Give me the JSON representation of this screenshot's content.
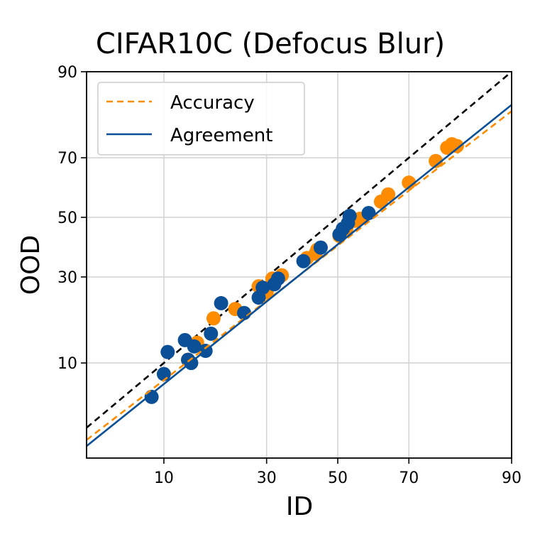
{
  "chart_data": {
    "type": "scatter",
    "title": "CIFAR10C (Defocus Blur)",
    "xlabel": "ID",
    "ylabel": "OOD",
    "xlim": [
      3.2,
      90
    ],
    "ylim": [
      1.7,
      90
    ],
    "x_ticks": [
      10,
      30,
      50,
      70,
      90
    ],
    "y_ticks": [
      10,
      30,
      50,
      70,
      90
    ],
    "x_tick_labels": [
      "10",
      "30",
      "50",
      "70",
      "90"
    ],
    "y_tick_labels": [
      "10",
      "30",
      "50",
      "70",
      "90"
    ],
    "scale": "probit",
    "grid": true,
    "legend_position": "top-left",
    "legend": [
      "Accuracy",
      "Agreement"
    ],
    "reference_line": "y = x",
    "series": [
      {
        "name": "Accuracy",
        "color": "#ff8c00",
        "fit_style": "dashed",
        "fit_line": [
          [
            3.2,
            2.5
          ],
          [
            90,
            82.5
          ]
        ],
        "points": [
          [
            13.5,
            10.5
          ],
          [
            15.0,
            13.5
          ],
          [
            18.0,
            18.7
          ],
          [
            22.5,
            21.0
          ],
          [
            28.0,
            27.2
          ],
          [
            29.0,
            26.2
          ],
          [
            30.0,
            25.5
          ],
          [
            31.5,
            29.5
          ],
          [
            34.0,
            30.5
          ],
          [
            41.0,
            36.0
          ],
          [
            43.5,
            37.5
          ],
          [
            44.0,
            38.8
          ],
          [
            50.5,
            43.5
          ],
          [
            52.5,
            46.0
          ],
          [
            55.0,
            48.8
          ],
          [
            56.5,
            49.5
          ],
          [
            62.5,
            55.5
          ],
          [
            64.5,
            58.0
          ],
          [
            70.0,
            62.0
          ],
          [
            76.5,
            69.0
          ],
          [
            79.0,
            73.0
          ],
          [
            80.0,
            74.0
          ],
          [
            81.0,
            73.5
          ]
        ],
        "marker": "circle"
      },
      {
        "name": "Agreement",
        "color": "#0b4f96",
        "fit_style": "solid",
        "fit_line": [
          [
            3.2,
            2.2
          ],
          [
            90,
            83.9
          ]
        ],
        "points": [
          [
            8.5,
            5.7
          ],
          [
            10.0,
            8.4
          ],
          [
            10.5,
            11.8
          ],
          [
            13.0,
            14.0
          ],
          [
            13.5,
            10.5
          ],
          [
            14.0,
            10.0
          ],
          [
            14.5,
            12.8
          ],
          [
            16.5,
            12.0
          ],
          [
            17.5,
            15.3
          ],
          [
            19.5,
            22.5
          ],
          [
            24.5,
            20.0
          ],
          [
            28.0,
            24.0
          ],
          [
            29.0,
            26.8
          ],
          [
            32.0,
            27.8
          ],
          [
            33.0,
            29.5
          ],
          [
            40.0,
            35.0
          ],
          [
            45.0,
            39.5
          ],
          [
            50.5,
            44.0
          ],
          [
            51.5,
            46.0
          ],
          [
            53.0,
            48.0
          ],
          [
            53.5,
            50.5
          ],
          [
            59.0,
            51.5
          ]
        ],
        "marker": "circle"
      }
    ]
  }
}
